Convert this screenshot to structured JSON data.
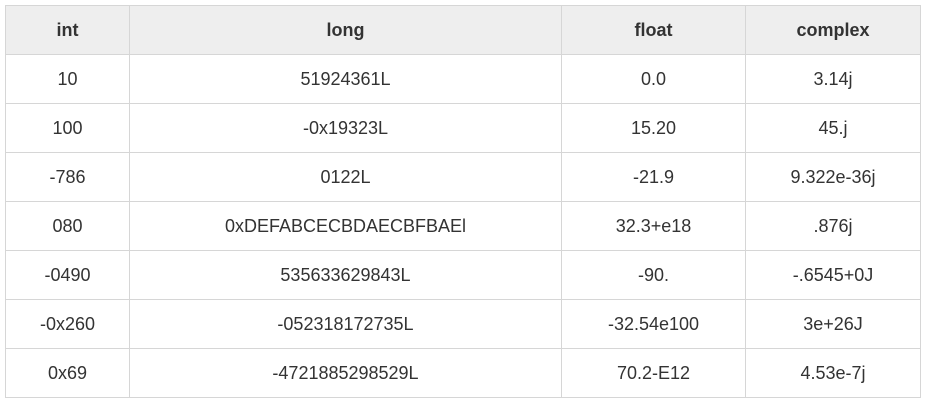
{
  "table": {
    "headers": [
      "int",
      "long",
      "float",
      "complex"
    ],
    "rows": [
      [
        "10",
        "51924361L",
        "0.0",
        "3.14j"
      ],
      [
        "100",
        "-0x19323L",
        "15.20",
        "45.j"
      ],
      [
        "-786",
        "0122L",
        "-21.9",
        "9.322e-36j"
      ],
      [
        "080",
        "0xDEFABCECBDAECBFBAEl",
        "32.3+e18",
        ".876j"
      ],
      [
        "-0490",
        "535633629843L",
        "-90.",
        "-.6545+0J"
      ],
      [
        "-0x260",
        "-052318172735L",
        "-32.54e100",
        "3e+26J"
      ],
      [
        "0x69",
        "-4721885298529L",
        "70.2-E12",
        "4.53e-7j"
      ]
    ]
  }
}
